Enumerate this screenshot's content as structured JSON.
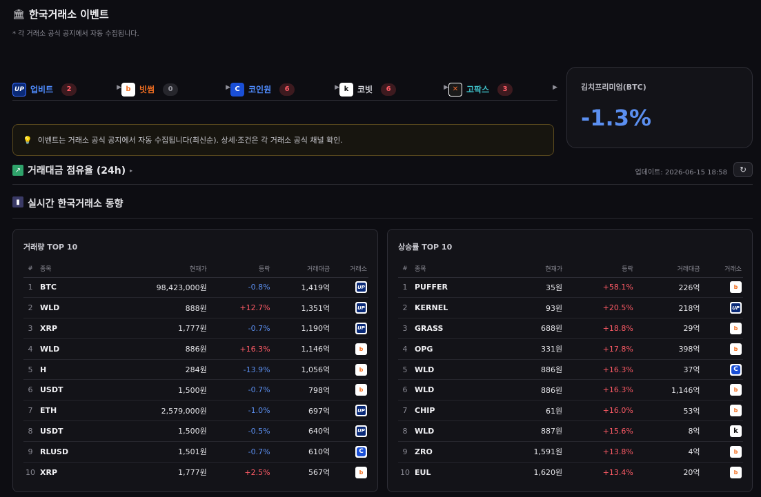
{
  "header": {
    "icon": "bank-icon",
    "title": "한국거래소 이벤트",
    "subtitle": "* 각 거래소 공식 공지에서 자동 수집됩니다."
  },
  "exchanges": [
    {
      "name": "업비트",
      "count": "2",
      "color": "#4f8cff",
      "logo": "UP"
    },
    {
      "name": "빗썸",
      "count": "0",
      "color": "#f36f21",
      "logo": "b"
    },
    {
      "name": "코인원",
      "count": "6",
      "color": "#4f8cff",
      "logo": "C"
    },
    {
      "name": "코빗",
      "count": "6",
      "color": "#d8d8de",
      "logo": "k"
    },
    {
      "name": "고팍스",
      "count": "3",
      "color": "#3fc1c9",
      "logo": "X"
    }
  ],
  "kimchi": {
    "label": "김치프리미엄(BTC)",
    "value": "-1.3%"
  },
  "notice": {
    "text": "이벤트는 거래소 공식 공지에서 자동 수집됩니다(최신순). 상세·조건은 각 거래소 공식 채널 확인."
  },
  "share": {
    "title": "거래대금 점유율 (24h)",
    "updated": "업데이트: 2026-06-15 18:58",
    "refresh": "↻"
  },
  "trend": {
    "title": "실시간 한국거래소 동향"
  },
  "columns": {
    "rank": "#",
    "symbol": "종목",
    "price": "현재가",
    "change": "등락",
    "volume": "거래대금",
    "exchange": "거래소"
  },
  "volume_top": {
    "title": "거래량 TOP 10",
    "rows": [
      {
        "rank": "1",
        "symbol": "BTC",
        "price": "98,423,000원",
        "change": "-0.8%",
        "volume": "1,419억",
        "ex": "upbit"
      },
      {
        "rank": "2",
        "symbol": "WLD",
        "price": "888원",
        "change": "+12.7%",
        "volume": "1,351억",
        "ex": "upbit"
      },
      {
        "rank": "3",
        "symbol": "XRP",
        "price": "1,777원",
        "change": "-0.7%",
        "volume": "1,190억",
        "ex": "upbit"
      },
      {
        "rank": "4",
        "symbol": "WLD",
        "price": "886원",
        "change": "+16.3%",
        "volume": "1,146억",
        "ex": "bithumb"
      },
      {
        "rank": "5",
        "symbol": "H",
        "price": "284원",
        "change": "-13.9%",
        "volume": "1,056억",
        "ex": "bithumb"
      },
      {
        "rank": "6",
        "symbol": "USDT",
        "price": "1,500원",
        "change": "-0.7%",
        "volume": "798억",
        "ex": "bithumb"
      },
      {
        "rank": "7",
        "symbol": "ETH",
        "price": "2,579,000원",
        "change": "-1.0%",
        "volume": "697억",
        "ex": "upbit"
      },
      {
        "rank": "8",
        "symbol": "USDT",
        "price": "1,500원",
        "change": "-0.5%",
        "volume": "640억",
        "ex": "upbit"
      },
      {
        "rank": "9",
        "symbol": "RLUSD",
        "price": "1,501원",
        "change": "-0.7%",
        "volume": "610억",
        "ex": "coinone"
      },
      {
        "rank": "10",
        "symbol": "XRP",
        "price": "1,777원",
        "change": "+2.5%",
        "volume": "567억",
        "ex": "bithumb"
      }
    ]
  },
  "gainers_top": {
    "title": "상승률 TOP 10",
    "rows": [
      {
        "rank": "1",
        "symbol": "PUFFER",
        "price": "35원",
        "change": "+58.1%",
        "volume": "226억",
        "ex": "bithumb"
      },
      {
        "rank": "2",
        "symbol": "KERNEL",
        "price": "93원",
        "change": "+20.5%",
        "volume": "218억",
        "ex": "upbit"
      },
      {
        "rank": "3",
        "symbol": "GRASS",
        "price": "688원",
        "change": "+18.8%",
        "volume": "29억",
        "ex": "bithumb"
      },
      {
        "rank": "4",
        "symbol": "OPG",
        "price": "331원",
        "change": "+17.8%",
        "volume": "398억",
        "ex": "bithumb"
      },
      {
        "rank": "5",
        "symbol": "WLD",
        "price": "886원",
        "change": "+16.3%",
        "volume": "37억",
        "ex": "coinone"
      },
      {
        "rank": "6",
        "symbol": "WLD",
        "price": "886원",
        "change": "+16.3%",
        "volume": "1,146억",
        "ex": "bithumb"
      },
      {
        "rank": "7",
        "symbol": "CHIP",
        "price": "61원",
        "change": "+16.0%",
        "volume": "53억",
        "ex": "bithumb"
      },
      {
        "rank": "8",
        "symbol": "WLD",
        "price": "887원",
        "change": "+15.6%",
        "volume": "8억",
        "ex": "korbit"
      },
      {
        "rank": "9",
        "symbol": "ZRO",
        "price": "1,591원",
        "change": "+13.8%",
        "volume": "4억",
        "ex": "bithumb"
      },
      {
        "rank": "10",
        "symbol": "EUL",
        "price": "1,620원",
        "change": "+13.4%",
        "volume": "20억",
        "ex": "bithumb"
      }
    ]
  }
}
